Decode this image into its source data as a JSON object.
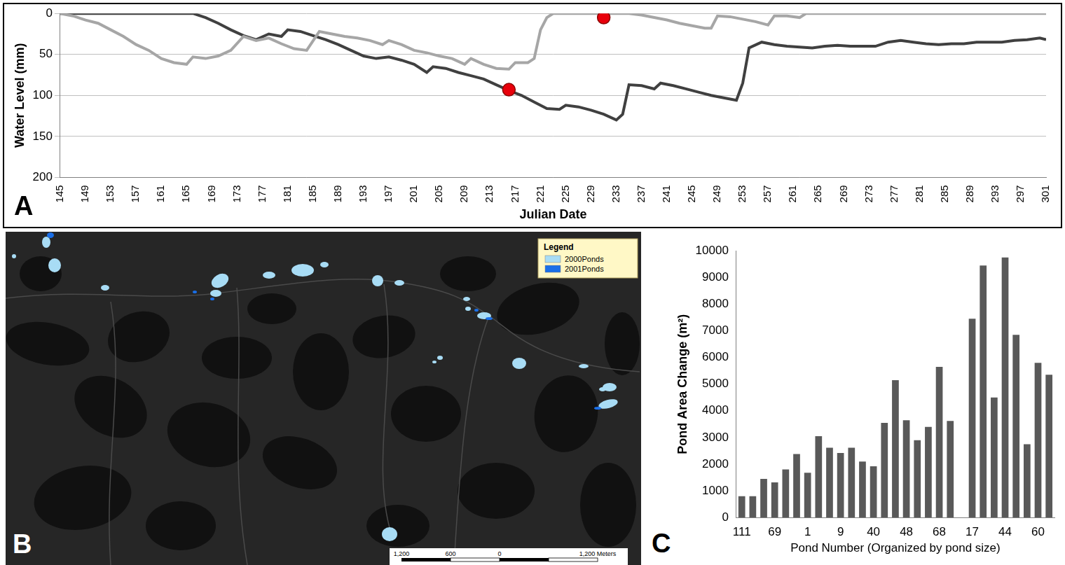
{
  "chart_data": [
    {
      "panel": "A",
      "type": "line",
      "x_label": "Julian Date",
      "y_label": "Water Level (mm)",
      "xlim": [
        145,
        301
      ],
      "xticks": [
        145,
        149,
        153,
        157,
        161,
        165,
        169,
        173,
        177,
        181,
        185,
        189,
        193,
        197,
        201,
        205,
        209,
        213,
        217,
        221,
        225,
        229,
        233,
        237,
        241,
        245,
        249,
        253,
        257,
        261,
        265,
        269,
        273,
        277,
        281,
        285,
        289,
        293,
        297,
        301
      ],
      "ylim": [
        200,
        0
      ],
      "yticks": [
        0,
        50,
        100,
        150,
        200
      ],
      "grid": true,
      "series": [
        {
          "type": "line",
          "color": "#a6a6a6",
          "line_style": "solid",
          "x": [
            145,
            147,
            149,
            151,
            153,
            155,
            157,
            159,
            161,
            163,
            165,
            166,
            168,
            170,
            172,
            174,
            176,
            178,
            180,
            182,
            184,
            186,
            188,
            190,
            192,
            194,
            196,
            197,
            199,
            201,
            203,
            205,
            207,
            209,
            210,
            212,
            214,
            216,
            217,
            219,
            220,
            221,
            222,
            223,
            235,
            237,
            239,
            241,
            243,
            245,
            247,
            248,
            249,
            251,
            253,
            255,
            257,
            258,
            260,
            262,
            263,
            301
          ],
          "values": [
            0,
            3,
            8,
            12,
            20,
            28,
            38,
            45,
            55,
            60,
            62,
            53,
            55,
            52,
            45,
            28,
            33,
            30,
            37,
            43,
            45,
            22,
            25,
            28,
            30,
            33,
            38,
            33,
            38,
            45,
            48,
            52,
            55,
            62,
            55,
            62,
            67,
            68,
            60,
            60,
            55,
            20,
            5,
            0,
            0,
            2,
            5,
            8,
            12,
            15,
            18,
            18,
            3,
            4,
            7,
            10,
            14,
            3,
            3,
            5,
            0,
            0
          ]
        },
        {
          "type": "line",
          "color": "#404040",
          "line_style": "solid",
          "x": [
            145,
            166,
            168,
            170,
            172,
            174,
            176,
            178,
            180,
            181,
            183,
            185,
            187,
            189,
            191,
            193,
            195,
            197,
            199,
            201,
            203,
            204,
            206,
            208,
            210,
            212,
            214,
            216,
            218,
            220,
            222,
            224,
            225,
            227,
            229,
            231,
            233,
            234,
            235,
            237,
            239,
            240,
            242,
            244,
            246,
            248,
            250,
            252,
            253,
            254,
            256,
            258,
            260,
            262,
            264,
            266,
            268,
            270,
            272,
            274,
            276,
            278,
            280,
            282,
            284,
            286,
            288,
            290,
            292,
            294,
            296,
            298,
            300,
            301
          ],
          "values": [
            0,
            0,
            5,
            12,
            20,
            27,
            32,
            25,
            28,
            20,
            22,
            27,
            32,
            38,
            45,
            52,
            55,
            53,
            57,
            62,
            72,
            65,
            67,
            72,
            76,
            80,
            87,
            94,
            100,
            108,
            116,
            117,
            112,
            114,
            118,
            123,
            130,
            123,
            87,
            88,
            92,
            85,
            88,
            92,
            96,
            100,
            103,
            106,
            85,
            42,
            35,
            38,
            40,
            41,
            42,
            40,
            39,
            40,
            40,
            40,
            35,
            33,
            35,
            37,
            38,
            37,
            37,
            35,
            35,
            35,
            33,
            32,
            30,
            32
          ]
        },
        {
          "type": "scatter",
          "color": "#e8000b",
          "marker": "circle",
          "x": [
            216,
            231
          ],
          "values": [
            93,
            5
          ]
        }
      ]
    },
    {
      "panel": "C",
      "type": "bar",
      "x_label": "Pond Number (Organized by pond size)",
      "y_label": "Pond Area Change (m²)",
      "categories": [
        "111",
        null,
        null,
        "69",
        null,
        null,
        "1",
        null,
        null,
        "9",
        null,
        null,
        "40",
        null,
        null,
        "48",
        null,
        null,
        "68",
        null,
        null,
        "17",
        null,
        null,
        "44",
        null,
        null,
        "60",
        null
      ],
      "values": [
        800,
        800,
        1450,
        1320,
        1800,
        2380,
        1680,
        3050,
        2620,
        2420,
        2620,
        2100,
        1920,
        3550,
        5150,
        3650,
        2900,
        3400,
        5650,
        3620,
        0,
        7450,
        9450,
        4500,
        9750,
        6850,
        2750,
        5800,
        5350
      ],
      "color": "#595959",
      "ylim": [
        0,
        10000
      ],
      "yticks": [
        0,
        1000,
        2000,
        3000,
        4000,
        5000,
        6000,
        7000,
        8000,
        9000,
        10000
      ],
      "grid": false
    }
  ],
  "map": {
    "panel": "B",
    "legend": {
      "title": "Legend",
      "entries": [
        {
          "name": "2000Ponds",
          "color": "#a8dcf5"
        },
        {
          "name": "2001Ponds",
          "color": "#1a6fe8"
        }
      ]
    },
    "scale_bar": [
      "1,200",
      "600",
      "0",
      "1,200 Meters"
    ]
  }
}
